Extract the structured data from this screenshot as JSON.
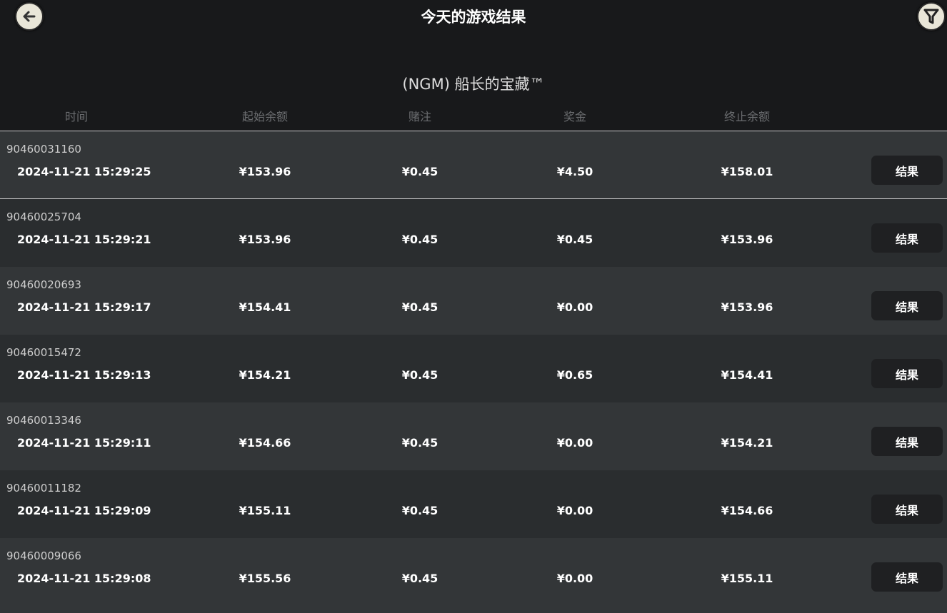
{
  "header": {
    "title": "今天的游戏结果",
    "game_name": "(NGM) 船长的宝藏™",
    "back_icon": "arrow-left-icon",
    "filter_icon": "filter-icon"
  },
  "columns": [
    "时间",
    "起始余额",
    "赌注",
    "奖金",
    "终止余额"
  ],
  "rows": [
    {
      "id": "90460031160",
      "time": "2024-11-21  15:29:25",
      "start": "¥153.96",
      "bet": "¥0.45",
      "win": "¥4.50",
      "end": "¥158.01",
      "button": "结果"
    },
    {
      "id": "90460025704",
      "time": "2024-11-21  15:29:21",
      "start": "¥153.96",
      "bet": "¥0.45",
      "win": "¥0.45",
      "end": "¥153.96",
      "button": "结果"
    },
    {
      "id": "90460020693",
      "time": "2024-11-21  15:29:17",
      "start": "¥154.41",
      "bet": "¥0.45",
      "win": "¥0.00",
      "end": "¥153.96",
      "button": "结果"
    },
    {
      "id": "90460015472",
      "time": "2024-11-21  15:29:13",
      "start": "¥154.21",
      "bet": "¥0.45",
      "win": "¥0.65",
      "end": "¥154.41",
      "button": "结果"
    },
    {
      "id": "90460013346",
      "time": "2024-11-21  15:29:11",
      "start": "¥154.66",
      "bet": "¥0.45",
      "win": "¥0.00",
      "end": "¥154.21",
      "button": "结果"
    },
    {
      "id": "90460011182",
      "time": "2024-11-21  15:29:09",
      "start": "¥155.11",
      "bet": "¥0.45",
      "win": "¥0.00",
      "end": "¥154.66",
      "button": "结果"
    },
    {
      "id": "90460009066",
      "time": "2024-11-21  15:29:08",
      "start": "¥155.56",
      "bet": "¥0.45",
      "win": "¥0.00",
      "end": "¥155.11",
      "button": "结果"
    }
  ]
}
